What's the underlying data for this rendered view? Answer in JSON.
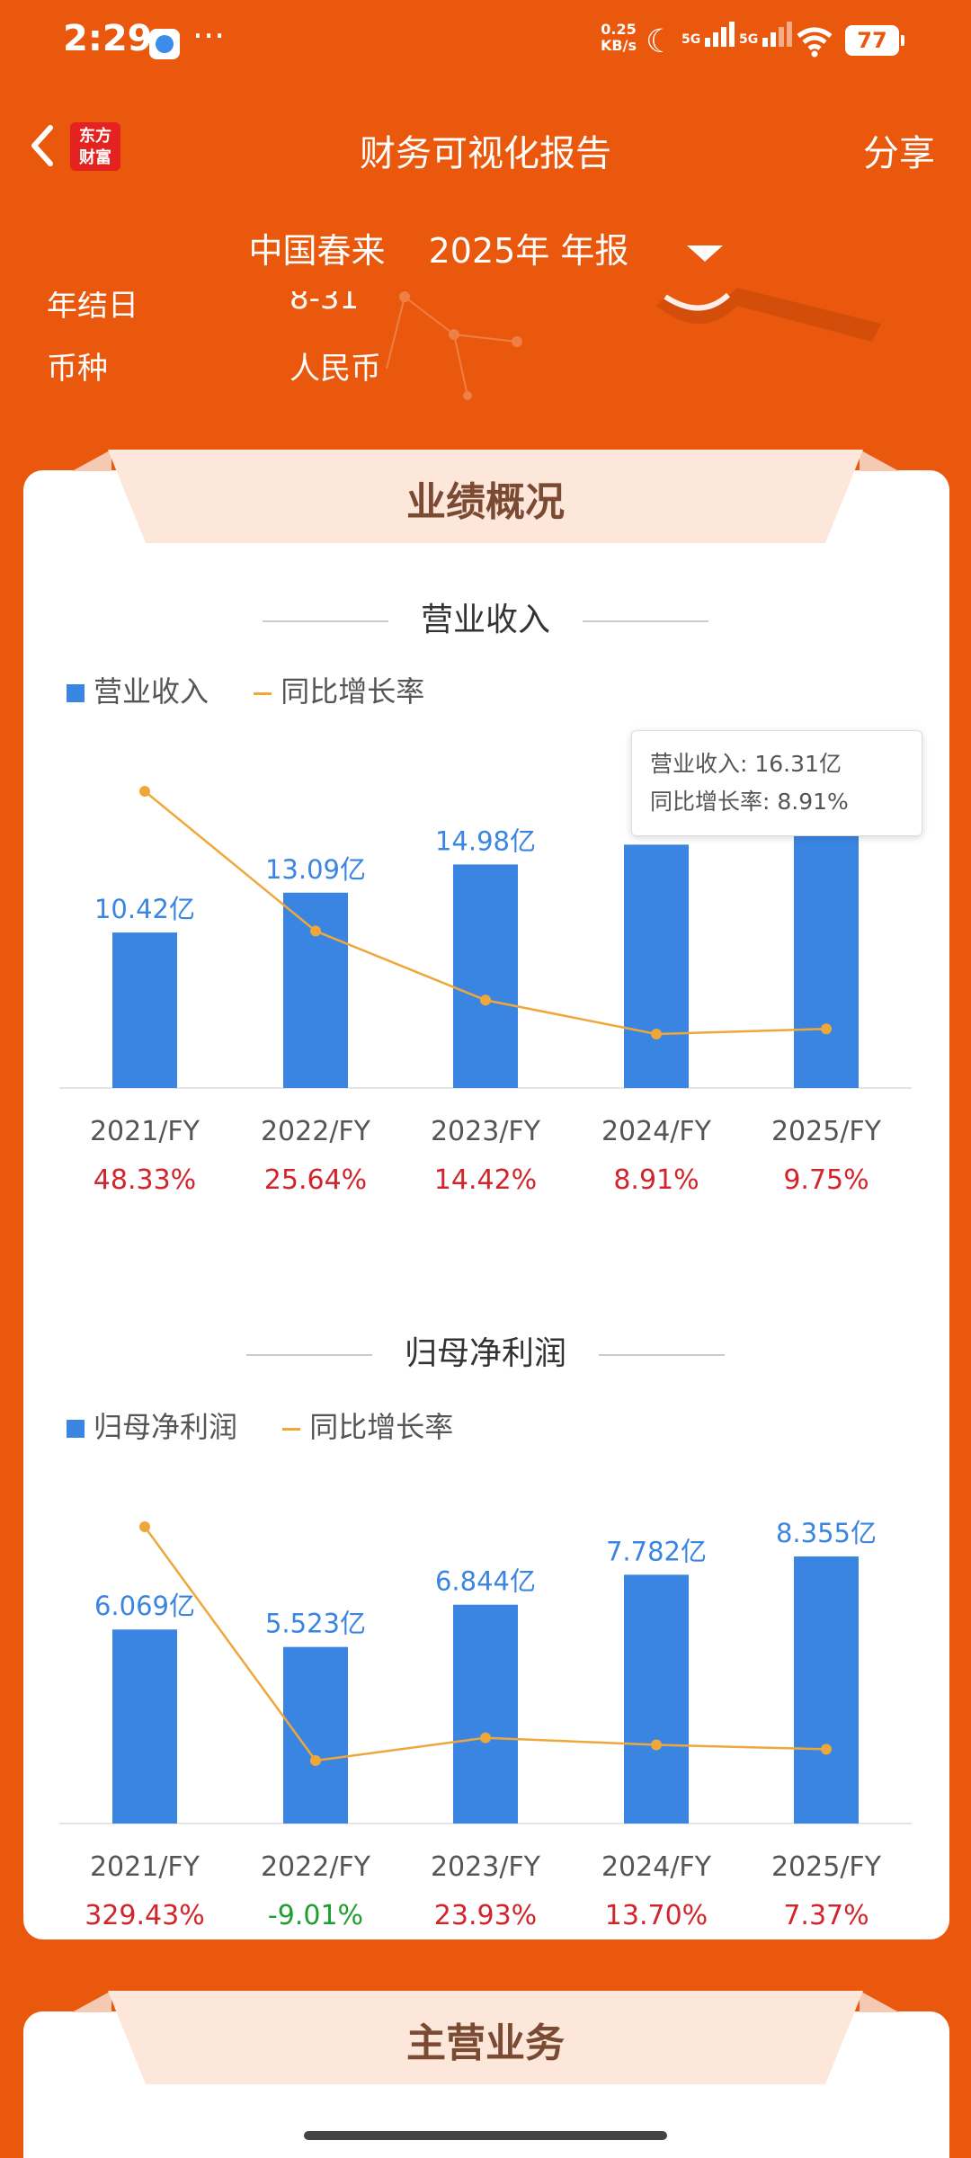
{
  "status_bar": {
    "time": "2:29",
    "more": "···",
    "net_speed": "0.25",
    "net_unit": "KB/s",
    "sig1": "5G",
    "sig2": "5G",
    "battery": "77"
  },
  "nav": {
    "logo_line1": "东方",
    "logo_line2": "财富",
    "title": "财务可视化报告",
    "share": "分享"
  },
  "selector": {
    "company": "中国春来",
    "period": "2025年 年报"
  },
  "info": [
    {
      "label": "年结日",
      "value": "8-31"
    },
    {
      "label": "币种",
      "value": "人民币"
    }
  ],
  "section1": {
    "title": "业绩概况"
  },
  "chart_revenue": {
    "title": "营业收入",
    "legend_bar": "营业收入",
    "legend_line": "同比增长率",
    "tooltip_line1": "营业收入: 16.31亿",
    "tooltip_line2": "同比增长率: 8.91%"
  },
  "chart_profit": {
    "title": "归母净利润",
    "legend_bar": "归母净利润",
    "legend_line": "同比增长率"
  },
  "chart_data": [
    {
      "type": "bar",
      "title": "营业收入",
      "categories": [
        "2021/FY",
        "2022/FY",
        "2023/FY",
        "2024/FY",
        "2025/FY"
      ],
      "series": [
        {
          "name": "营业收入",
          "values": [
            10.42,
            13.09,
            14.98,
            16.31,
            17.9
          ],
          "labels": [
            "10.42亿",
            "13.09亿",
            "14.98亿",
            "",
            ""
          ]
        },
        {
          "name": "同比增长率",
          "type": "line",
          "values": [
            48.33,
            25.64,
            14.42,
            8.91,
            9.75
          ],
          "labels": [
            "48.33%",
            "25.64%",
            "14.42%",
            "8.91%",
            "9.75%"
          ]
        }
      ],
      "growth_colors": [
        "#D2252B",
        "#D2252B",
        "#D2252B",
        "#D2252B",
        "#D2252B"
      ]
    },
    {
      "type": "bar",
      "title": "归母净利润",
      "categories": [
        "2021/FY",
        "2022/FY",
        "2023/FY",
        "2024/FY",
        "2025/FY"
      ],
      "series": [
        {
          "name": "归母净利润",
          "values": [
            6.069,
            5.523,
            6.844,
            7.782,
            8.355
          ],
          "labels": [
            "6.069亿",
            "5.523亿",
            "6.844亿",
            "7.782亿",
            "8.355亿"
          ]
        },
        {
          "name": "同比增长率",
          "type": "line",
          "values": [
            329.43,
            -9.01,
            23.93,
            13.7,
            7.37
          ],
          "labels": [
            "329.43%",
            "-9.01%",
            "23.93%",
            "13.70%",
            "7.37%"
          ]
        }
      ],
      "growth_colors": [
        "#D2252B",
        "#1E9E2E",
        "#D2252B",
        "#D2252B",
        "#D2252B"
      ]
    }
  ],
  "section2": {
    "title": "主营业务"
  },
  "colors": {
    "brand": "#E9580C",
    "bar": "#3A85E1",
    "line": "#F0A73A",
    "up": "#D2252B",
    "down": "#1E9E2E"
  }
}
